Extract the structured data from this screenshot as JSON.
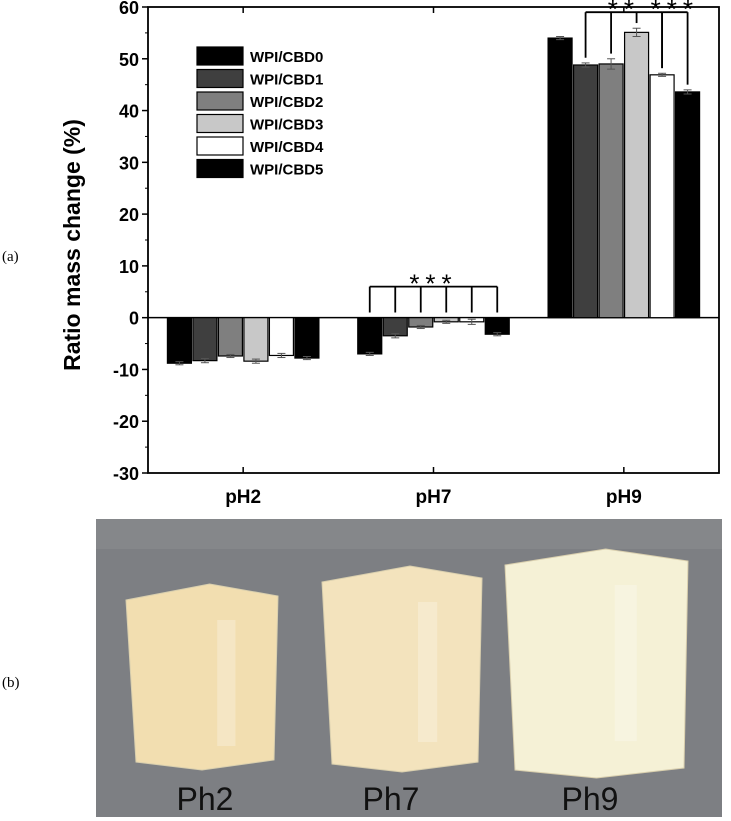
{
  "panels": {
    "a": "(a)",
    "b": "(b)"
  },
  "chart_data": {
    "type": "bar",
    "title": "",
    "xlabel": "",
    "ylabel": "Ratio mass change (%)",
    "ylim": [
      -30,
      60
    ],
    "yticks": [
      -30,
      -20,
      -10,
      0,
      10,
      20,
      30,
      40,
      50,
      60
    ],
    "categories": [
      "pH2",
      "pH7",
      "pH9"
    ],
    "grid": false,
    "legend_position": "top-left",
    "series": [
      {
        "name": "WPI/CBD0",
        "color": "#000000",
        "values": [
          -8.8,
          -7.0,
          54.0
        ],
        "errors": [
          0.3,
          0.3,
          0.3
        ]
      },
      {
        "name": "WPI/CBD1",
        "color": "#3f3f3f",
        "values": [
          -8.3,
          -3.5,
          48.8
        ],
        "errors": [
          0.4,
          0.4,
          0.4
        ]
      },
      {
        "name": "WPI/CBD2",
        "color": "#7f7f7f",
        "values": [
          -7.4,
          -1.8,
          49.0
        ],
        "errors": [
          0.3,
          0.3,
          1.0
        ]
      },
      {
        "name": "WPI/CBD3",
        "color": "#c8c8c8",
        "values": [
          -8.4,
          -0.8,
          55.1
        ],
        "errors": [
          0.4,
          0.3,
          0.8
        ]
      },
      {
        "name": "WPI/CBD4",
        "color": "#ffffff",
        "values": [
          -7.3,
          -0.8,
          46.9
        ],
        "errors": [
          0.4,
          0.5,
          0.3
        ]
      },
      {
        "name": "WPI/CBD5",
        "color": "#000000",
        "values": [
          -7.8,
          -3.2,
          43.6
        ],
        "errors": [
          0.3,
          0.3,
          0.4
        ]
      }
    ],
    "annotations": [
      {
        "label": "***",
        "category": "pH7",
        "from_series": 0,
        "to_series": 5,
        "bar_y": 6
      },
      {
        "label": "**",
        "category": "pH9",
        "from_series": 1,
        "to_series": 4,
        "bar_y": 59
      },
      {
        "label": "***",
        "category": "pH9",
        "from_series": 4,
        "to_series": 5,
        "bar_y": 59
      }
    ]
  },
  "photo": {
    "captions": [
      "Ph2",
      "Ph7",
      "Ph9"
    ],
    "background_color": "#7d7f83",
    "sample_colors": [
      "#f2deb0",
      "#f3e3bd",
      "#f5f1d6"
    ]
  }
}
